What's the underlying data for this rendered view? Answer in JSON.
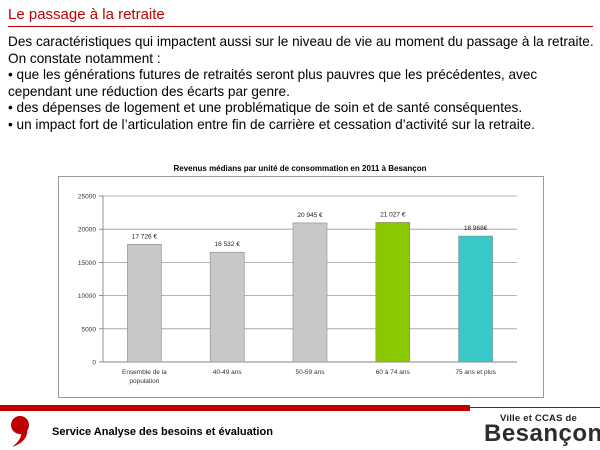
{
  "header": {
    "title": "Le passage à la retraite"
  },
  "body": {
    "paragraphs": [
      "Des caractéristiques qui impactent aussi sur le niveau de vie au moment du passage à la retraite. On constate notamment  :",
      "• que les générations futures de retraités seront plus pauvres que les précédentes, avec cependant une réduction des écarts par genre.",
      "• des dépenses de logement et une problématique de soin et de santé conséquentes.",
      "• un impact fort de l’articulation entre fin de carrière et cessation d’activité sur la retraite."
    ]
  },
  "chart_data": {
    "type": "bar",
    "title": "Revenus médians par unité de consommation en 2011 à Besançon",
    "xlabel": "",
    "ylabel": "",
    "categories": [
      "Ensemble de la population",
      "40-49 ans",
      "50-59 ans",
      "60 à 74 ans",
      "75 ans et plus"
    ],
    "category_lines": [
      [
        "Ensemble de la",
        "population"
      ],
      [
        "40-49 ans"
      ],
      [
        "50-59 ans"
      ],
      [
        "60 à 74 ans"
      ],
      [
        "75 ans et plus"
      ]
    ],
    "values": [
      17726,
      16532,
      20945,
      21027,
      18968
    ],
    "value_labels": [
      "17 726 €",
      "16 532 €",
      "20 945 €",
      "21 027 €",
      "18 968€"
    ],
    "colors": [
      "#c8c8c8",
      "#c8c8c8",
      "#c8c8c8",
      "#8cc800",
      "#38c8c8"
    ],
    "ylim": [
      0,
      25000
    ],
    "yticks": [
      0,
      5000,
      10000,
      15000,
      20000,
      25000
    ],
    "grid": true,
    "legend": "none"
  },
  "footer": {
    "service": "Service Analyse des besoins et évaluation",
    "brand_top": "Ville et CCAS de",
    "brand_name": "Besançon",
    "brand_color": "#c00000",
    "logo_icon": "red-comma-logo-icon"
  }
}
